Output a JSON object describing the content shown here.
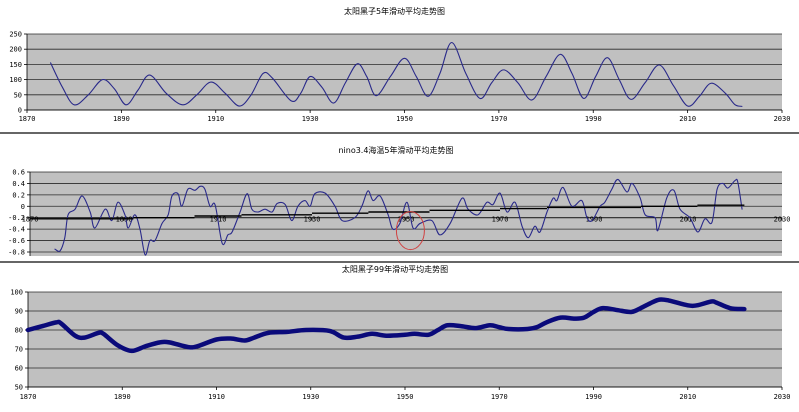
{
  "colors": {
    "plot_bg": "#c0c0c0",
    "grid": "#2a2a2a",
    "series": "#2a2a8a",
    "thick_series": "#0a0a7a",
    "trend": "#000000",
    "annotation": "#d04040"
  },
  "chart_data": [
    {
      "type": "line",
      "title": "太阳黑子5年滑动平均走势图",
      "xlim": [
        1870,
        2030
      ],
      "ylim": [
        0,
        250
      ],
      "xticks": [
        "1870",
        "1890",
        "1910",
        "1930",
        "1950",
        "1970",
        "1990",
        "2010",
        "2030"
      ],
      "yticks": [
        "0",
        "50",
        "100",
        "150",
        "200",
        "250"
      ],
      "grid": true,
      "series": [
        {
          "values": [
            [
              1875,
              155
            ],
            [
              1877.5,
              75
            ],
            [
              1880,
              17
            ],
            [
              1883,
              50
            ],
            [
              1886,
              100
            ],
            [
              1888.5,
              70
            ],
            [
              1891,
              17
            ],
            [
              1893.5,
              65
            ],
            [
              1896,
              115
            ],
            [
              1899.5,
              55
            ],
            [
              1903,
              17
            ],
            [
              1906,
              50
            ],
            [
              1909,
              92
            ],
            [
              1912,
              55
            ],
            [
              1915,
              13
            ],
            [
              1917.5,
              50
            ],
            [
              1920,
              120
            ],
            [
              1922,
              105
            ],
            [
              1926,
              30
            ],
            [
              1928,
              55
            ],
            [
              1930,
              110
            ],
            [
              1932.5,
              75
            ],
            [
              1935,
              23
            ],
            [
              1937.5,
              90
            ],
            [
              1940,
              152
            ],
            [
              1942,
              110
            ],
            [
              1944,
              47
            ],
            [
              1947,
              110
            ],
            [
              1950,
              170
            ],
            [
              1952.5,
              110
            ],
            [
              1955,
              45
            ],
            [
              1957.5,
              120
            ],
            [
              1960,
              222
            ],
            [
              1963,
              120
            ],
            [
              1966,
              38
            ],
            [
              1968.5,
              90
            ],
            [
              1971,
              132
            ],
            [
              1974,
              90
            ],
            [
              1977,
              33
            ],
            [
              1980,
              110
            ],
            [
              1983,
              183
            ],
            [
              1985.5,
              120
            ],
            [
              1988,
              38
            ],
            [
              1990.5,
              110
            ],
            [
              1993,
              172
            ],
            [
              1995.5,
              100
            ],
            [
              1998,
              35
            ],
            [
              2001,
              90
            ],
            [
              2004,
              148
            ],
            [
              2007,
              80
            ],
            [
              2010,
              13
            ],
            [
              2012.5,
              45
            ],
            [
              2015,
              88
            ],
            [
              2018,
              55
            ],
            [
              2020,
              18
            ],
            [
              2021.5,
              12
            ]
          ]
        }
      ]
    },
    {
      "type": "line",
      "title": "nino3.4海温5年滑动平均走势图",
      "xlim": [
        1870,
        2030
      ],
      "ylim": [
        -0.8,
        0.6
      ],
      "xticks": [
        "1870",
        "1890",
        "1910",
        "1930",
        "1950",
        "1970",
        "1990",
        "2010",
        "2030"
      ],
      "yticks": [
        "-0.8",
        "-0.6",
        "-0.4",
        "-0.2",
        "0",
        "0.2",
        "0.4",
        "0.6"
      ],
      "x_axis_crosses_at": -0.2,
      "grid": true,
      "series": [
        {
          "values": [
            [
              1875.3,
              -0.75
            ],
            [
              1876.4,
              -0.78
            ],
            [
              1877.4,
              -0.55
            ],
            [
              1878.1,
              -0.15
            ],
            [
              1879.6,
              -0.05
            ],
            [
              1881.1,
              0.18
            ],
            [
              1882.8,
              -0.1
            ],
            [
              1883.8,
              -0.38
            ],
            [
              1886.0,
              -0.05
            ],
            [
              1887.4,
              -0.25
            ],
            [
              1888.7,
              0.07
            ],
            [
              1890.2,
              -0.15
            ],
            [
              1890.9,
              -0.38
            ],
            [
              1892.3,
              -0.15
            ],
            [
              1893.4,
              -0.4
            ],
            [
              1894.5,
              -0.85
            ],
            [
              1895.5,
              -0.6
            ],
            [
              1896.6,
              -0.6
            ],
            [
              1898.1,
              -0.3
            ],
            [
              1899.4,
              -0.15
            ],
            [
              1900.2,
              0.18
            ],
            [
              1901.5,
              0.22
            ],
            [
              1902.3,
              0.0
            ],
            [
              1903.6,
              0.3
            ],
            [
              1905.1,
              0.28
            ],
            [
              1906.2,
              0.35
            ],
            [
              1907.2,
              0.3
            ],
            [
              1908.3,
              0.0
            ],
            [
              1909.4,
              0.02
            ],
            [
              1910.9,
              -0.65
            ],
            [
              1912.1,
              -0.5
            ],
            [
              1913.0,
              -0.45
            ],
            [
              1914.7,
              -0.1
            ],
            [
              1916.2,
              0.22
            ],
            [
              1917.2,
              -0.05
            ],
            [
              1918.5,
              -0.1
            ],
            [
              1920.0,
              -0.05
            ],
            [
              1921.5,
              -0.1
            ],
            [
              1922.6,
              0.05
            ],
            [
              1924.3,
              0.03
            ],
            [
              1925.7,
              -0.25
            ],
            [
              1927.0,
              0.0
            ],
            [
              1928.5,
              0.1
            ],
            [
              1929.6,
              0.0
            ],
            [
              1930.6,
              0.22
            ],
            [
              1932.8,
              0.23
            ],
            [
              1934.9,
              0.0
            ],
            [
              1936.4,
              -0.25
            ],
            [
              1939.1,
              -0.2
            ],
            [
              1940.6,
              0.0
            ],
            [
              1941.9,
              0.27
            ],
            [
              1943.0,
              0.1
            ],
            [
              1944.5,
              0.18
            ],
            [
              1946.2,
              -0.15
            ],
            [
              1947.2,
              -0.4
            ],
            [
              1948.7,
              -0.3
            ],
            [
              1950.2,
              0.07
            ],
            [
              1951.5,
              -0.38
            ],
            [
              1953.0,
              -0.3
            ],
            [
              1955.5,
              -0.25
            ],
            [
              1957.2,
              -0.5
            ],
            [
              1959.4,
              -0.3
            ],
            [
              1961.9,
              0.14
            ],
            [
              1963.2,
              -0.05
            ],
            [
              1965.3,
              -0.15
            ],
            [
              1967.2,
              0.07
            ],
            [
              1968.5,
              0.03
            ],
            [
              1970.0,
              0.23
            ],
            [
              1971.5,
              -0.1
            ],
            [
              1973.2,
              0.07
            ],
            [
              1974.7,
              -0.35
            ],
            [
              1976.0,
              -0.55
            ],
            [
              1977.4,
              -0.35
            ],
            [
              1978.5,
              -0.45
            ],
            [
              1980.0,
              -0.1
            ],
            [
              1981.3,
              0.14
            ],
            [
              1982.1,
              0.1
            ],
            [
              1983.4,
              0.33
            ],
            [
              1985.3,
              0.0
            ],
            [
              1987.4,
              0.1
            ],
            [
              1988.5,
              -0.2
            ],
            [
              1989.6,
              -0.25
            ],
            [
              1991.3,
              0.0
            ],
            [
              1992.3,
              0.07
            ],
            [
              1993.8,
              0.3
            ],
            [
              1995.1,
              0.47
            ],
            [
              1997.0,
              0.25
            ],
            [
              1998.1,
              0.4
            ],
            [
              1999.8,
              0.15
            ],
            [
              2000.9,
              -0.15
            ],
            [
              2003.0,
              -0.2
            ],
            [
              2003.6,
              -0.42
            ],
            [
              2005.5,
              0.15
            ],
            [
              2007.0,
              0.28
            ],
            [
              2008.3,
              -0.05
            ],
            [
              2010.4,
              -0.2
            ],
            [
              2012.1,
              -0.45
            ],
            [
              2013.6,
              -0.22
            ],
            [
              2015.1,
              -0.28
            ],
            [
              2016.2,
              0.3
            ],
            [
              2017.4,
              0.4
            ],
            [
              2018.5,
              0.32
            ],
            [
              2020.0,
              0.45
            ],
            [
              2020.6,
              0.42
            ],
            [
              2021.5,
              -0.05
            ]
          ]
        },
        {
          "type": "step-trend",
          "values": [
            [
              1870,
              -0.22
            ],
            [
              1892,
              -0.2
            ],
            [
              1905,
              -0.17
            ],
            [
              1915,
              -0.15
            ],
            [
              1930,
              -0.12
            ],
            [
              1942,
              -0.1
            ],
            [
              1955,
              -0.07
            ],
            [
              1970,
              -0.04
            ],
            [
              1980,
              -0.02
            ],
            [
              2000,
              0.0
            ],
            [
              2012,
              0.02
            ],
            [
              2022,
              0.03
            ]
          ]
        }
      ],
      "annotation": {
        "type": "circle",
        "at_year": 1952,
        "at_value": -0.25
      }
    },
    {
      "type": "line",
      "title": "太阳黑子99年滑动平均走势图",
      "xlim": [
        1870,
        2030
      ],
      "ylim": [
        50,
        100
      ],
      "xticks": [
        "1870",
        "1890",
        "1910",
        "1930",
        "1950",
        "1970",
        "1990",
        "2010",
        "2030"
      ],
      "yticks": [
        "50",
        "60",
        "70",
        "80",
        "90",
        "100"
      ],
      "grid": true,
      "series": [
        {
          "values": [
            [
              1870,
              80
            ],
            [
              1873,
              82
            ],
            [
              1876,
              84
            ],
            [
              1877,
              83.5
            ],
            [
              1880,
              77
            ],
            [
              1882,
              76
            ],
            [
              1885,
              78.5
            ],
            [
              1886,
              78
            ],
            [
              1889,
              72
            ],
            [
              1892,
              69
            ],
            [
              1895,
              71.5
            ],
            [
              1898,
              73.5
            ],
            [
              1900,
              73.5
            ],
            [
              1904,
              71
            ],
            [
              1906,
              71.5
            ],
            [
              1910,
              75
            ],
            [
              1913,
              75.5
            ],
            [
              1916,
              74.5
            ],
            [
              1918,
              76
            ],
            [
              1921,
              78.5
            ],
            [
              1925,
              79
            ],
            [
              1929,
              80
            ],
            [
              1934,
              79.5
            ],
            [
              1937,
              76
            ],
            [
              1940,
              76.5
            ],
            [
              1943,
              78
            ],
            [
              1946,
              77
            ],
            [
              1950,
              77.5
            ],
            [
              1952,
              78
            ],
            [
              1955,
              77.5
            ],
            [
              1957,
              80
            ],
            [
              1959,
              82.5
            ],
            [
              1962,
              82
            ],
            [
              1965,
              81
            ],
            [
              1968,
              82.5
            ],
            [
              1970,
              81.5
            ],
            [
              1972,
              80.5
            ],
            [
              1976,
              80.5
            ],
            [
              1978,
              81.5
            ],
            [
              1980,
              84
            ],
            [
              1983,
              86.5
            ],
            [
              1986,
              86
            ],
            [
              1988,
              86.5
            ],
            [
              1990,
              89.5
            ],
            [
              1992,
              91.5
            ],
            [
              1995,
              90.5
            ],
            [
              1998,
              89.5
            ],
            [
              2000,
              91.5
            ],
            [
              2002,
              94
            ],
            [
              2004,
              96
            ],
            [
              2006,
              95.5
            ],
            [
              2010,
              93
            ],
            [
              2012,
              93
            ],
            [
              2015,
              95
            ],
            [
              2016,
              94.5
            ],
            [
              2019,
              91.5
            ],
            [
              2022,
              91
            ]
          ]
        }
      ]
    }
  ]
}
